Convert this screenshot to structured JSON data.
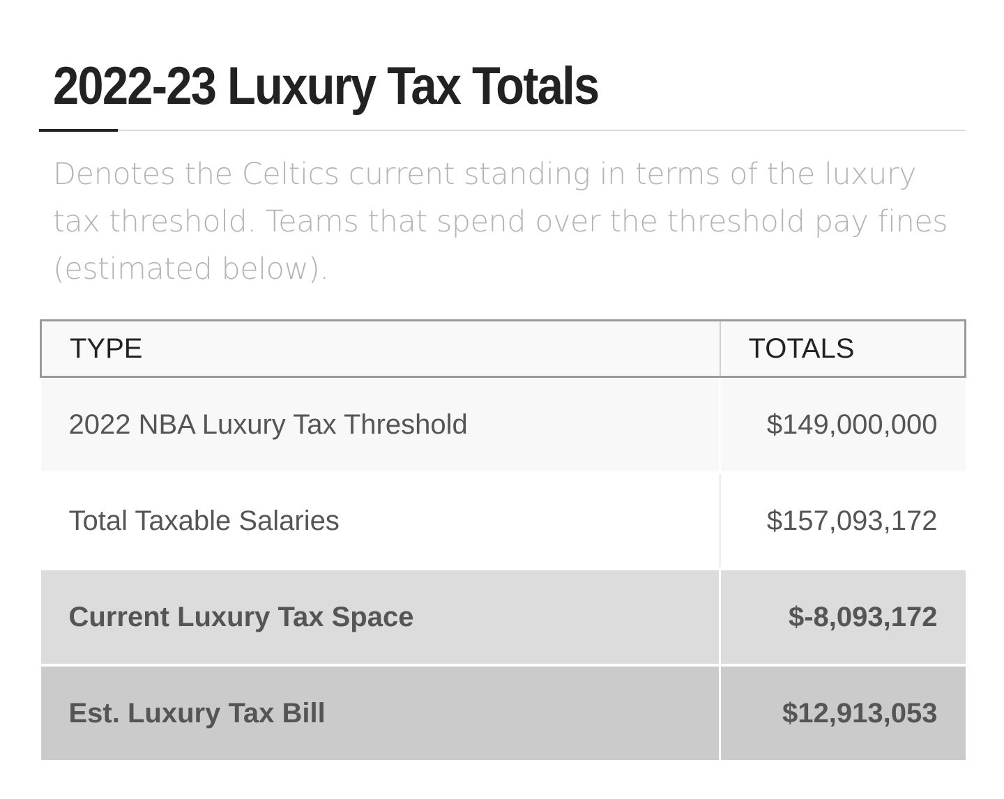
{
  "title": "2022-23 Luxury Tax Totals",
  "description": "Denotes the Celtics current standing in terms of the luxury tax threshold. Teams that spend over the threshold pay fines (estimated below).",
  "table": {
    "headers": [
      "TYPE",
      "TOTALS"
    ],
    "rows": [
      {
        "type": "2022 NBA Luxury Tax Threshold",
        "total": "$149,000,000"
      },
      {
        "type": "Total Taxable Salaries",
        "total": "$157,093,172"
      },
      {
        "type": "Current Luxury Tax Space",
        "total": "$-8,093,172"
      },
      {
        "type": "Est. Luxury Tax Bill",
        "total": "$12,913,053"
      }
    ]
  },
  "colors": {
    "title": "#222222",
    "description": "#b4b4b4",
    "header_border": "#9a9a9a",
    "row_highlight_1": "#dcdcdc",
    "row_highlight_2": "#cbcbcb"
  }
}
